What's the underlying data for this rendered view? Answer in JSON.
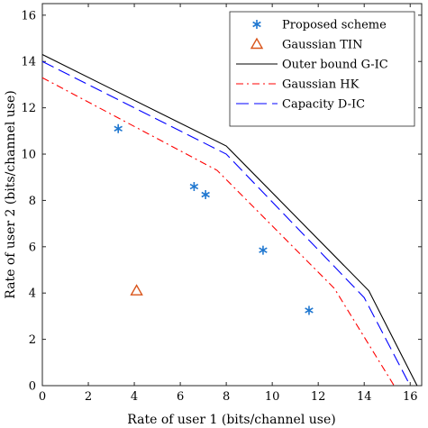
{
  "chart_data": {
    "type": "line",
    "xlabel": "Rate of user 1 (bits/channel use)",
    "ylabel": "Rate of user 2 (bits/channel use)",
    "xlim": [
      0,
      16.5
    ],
    "ylim": [
      0,
      16.5
    ],
    "xticks": [
      "0",
      "2",
      "4",
      "6",
      "8",
      "10",
      "12",
      "14",
      "16"
    ],
    "yticks": [
      "0",
      "2",
      "4",
      "6",
      "8",
      "10",
      "12",
      "14",
      "16"
    ],
    "grid": false,
    "legend_position": "top-right",
    "series": [
      {
        "name": "Proposed scheme",
        "kind": "scatter",
        "marker": "asterisk",
        "color": "#1f77d0",
        "points": [
          [
            3.3,
            11.1
          ],
          [
            6.6,
            8.6
          ],
          [
            7.1,
            8.25
          ],
          [
            9.6,
            5.85
          ],
          [
            11.6,
            3.25
          ]
        ]
      },
      {
        "name": "Gaussian TIN",
        "kind": "scatter",
        "marker": "triangle",
        "color": "#d9541a",
        "points": [
          [
            4.1,
            4.1
          ]
        ]
      },
      {
        "name": "Outer bound G-IC",
        "kind": "line",
        "dash": "solid",
        "color": "#000000",
        "points": [
          [
            0,
            14.3
          ],
          [
            8.0,
            10.35
          ],
          [
            14.2,
            4.1
          ],
          [
            16.3,
            0
          ]
        ]
      },
      {
        "name": "Gaussian HK",
        "kind": "line",
        "dash": "dashdot",
        "color": "#ff0000",
        "points": [
          [
            0,
            13.3
          ],
          [
            7.6,
            9.3
          ],
          [
            12.7,
            4.2
          ],
          [
            15.3,
            0
          ]
        ]
      },
      {
        "name": "Capacity D-IC",
        "kind": "line",
        "dash": "dashed",
        "color": "#0000ff",
        "points": [
          [
            0,
            14.0
          ],
          [
            8.0,
            10.0
          ],
          [
            14.0,
            3.8
          ],
          [
            16.0,
            0
          ]
        ]
      }
    ]
  }
}
